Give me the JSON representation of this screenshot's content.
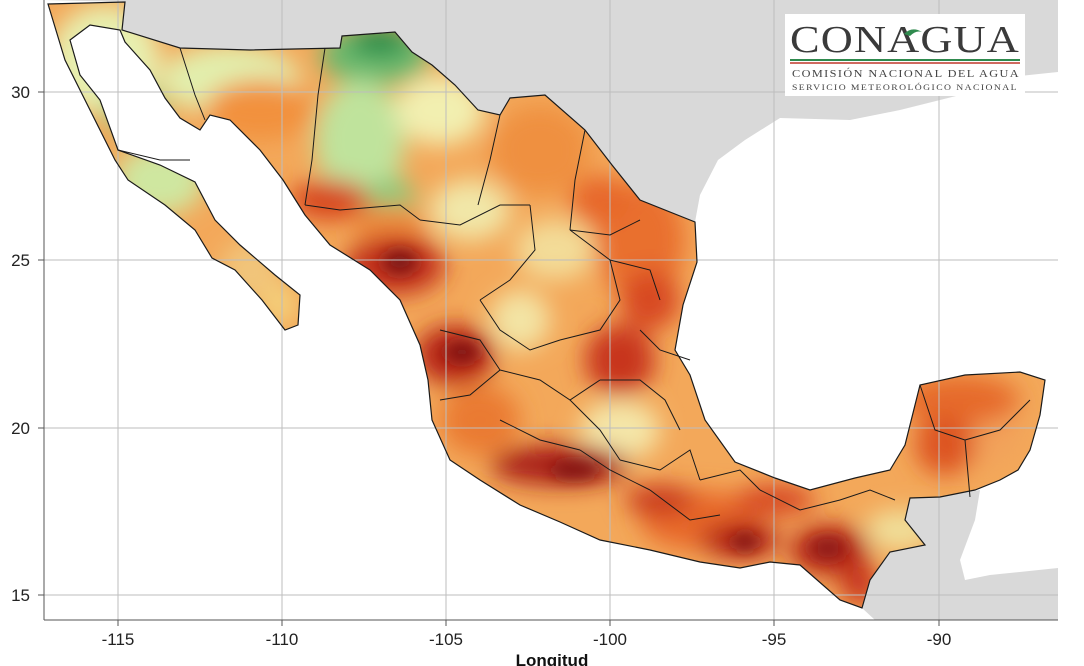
{
  "logo": {
    "name": "CONAGUA",
    "line1": "COMISIÓN NACIONAL DEL AGUA",
    "line2": "SERVICIO METEOROLÓGICO NACIONAL",
    "colors": {
      "text": "#3a3a3a",
      "accent_green": "#2f8a4e",
      "accent_red": "#c0392b"
    }
  },
  "axes": {
    "x_ticks": [
      "-115",
      "-110",
      "-105",
      "-100",
      "-95",
      "-90"
    ],
    "y_ticks": [
      "30",
      "25",
      "20",
      "15"
    ],
    "x_title": "Longitud"
  },
  "colors": {
    "ocean": "#ffffff",
    "foreign_land": "#d9d9d9",
    "grid": "#bdbdbd",
    "border": "#1a1a1a",
    "scale": [
      "#1e8a45",
      "#7cc47b",
      "#d8eea0",
      "#f3f0b4",
      "#f7c777",
      "#f0953f",
      "#e35d26",
      "#c8301c",
      "#8b1a1a"
    ]
  }
}
